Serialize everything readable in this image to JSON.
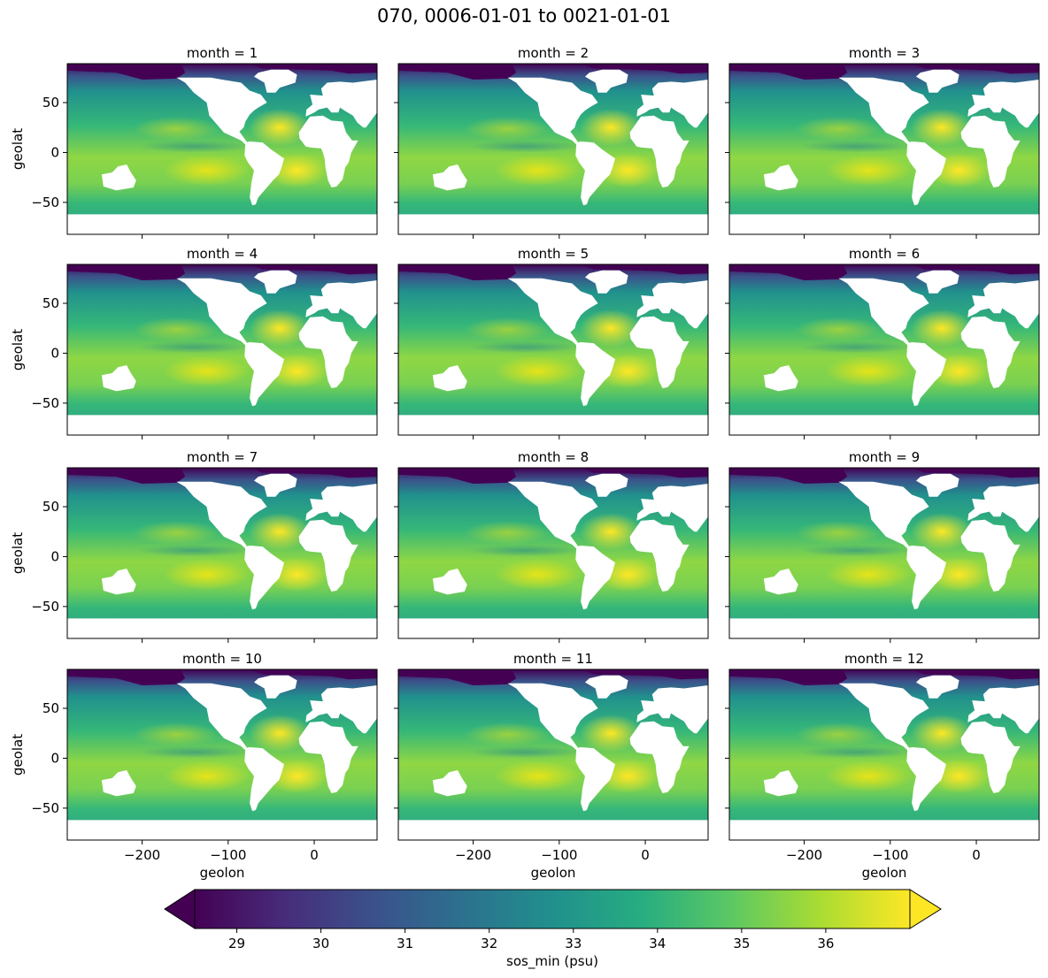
{
  "chart_data": {
    "type": "heatmap",
    "title": "070, 0006-01-01 to 0021-01-01",
    "panel_titles": [
      "month = 1",
      "month = 2",
      "month = 3",
      "month = 4",
      "month = 5",
      "month = 6",
      "month = 7",
      "month = 8",
      "month = 9",
      "month = 10",
      "month = 11",
      "month = 12"
    ],
    "xlabel": "geolon",
    "ylabel": "geolat",
    "xlim": [
      -287,
      73
    ],
    "ylim": [
      -82,
      89
    ],
    "xticks": [
      -200,
      -100,
      0
    ],
    "xtick_labels": [
      "−200",
      "−100",
      "0"
    ],
    "yticks": [
      -50,
      0,
      50
    ],
    "ytick_labels": [
      "−50",
      "0",
      "50"
    ],
    "colorbar": {
      "label": "sos_min (psu)",
      "vmin": 28.5,
      "vmax": 37.0,
      "ticks": [
        29,
        30,
        31,
        32,
        33,
        34,
        35,
        36
      ],
      "tick_labels": [
        "29",
        "30",
        "31",
        "32",
        "33",
        "34",
        "35",
        "36"
      ],
      "extend": "both",
      "cmap": "viridis"
    }
  }
}
